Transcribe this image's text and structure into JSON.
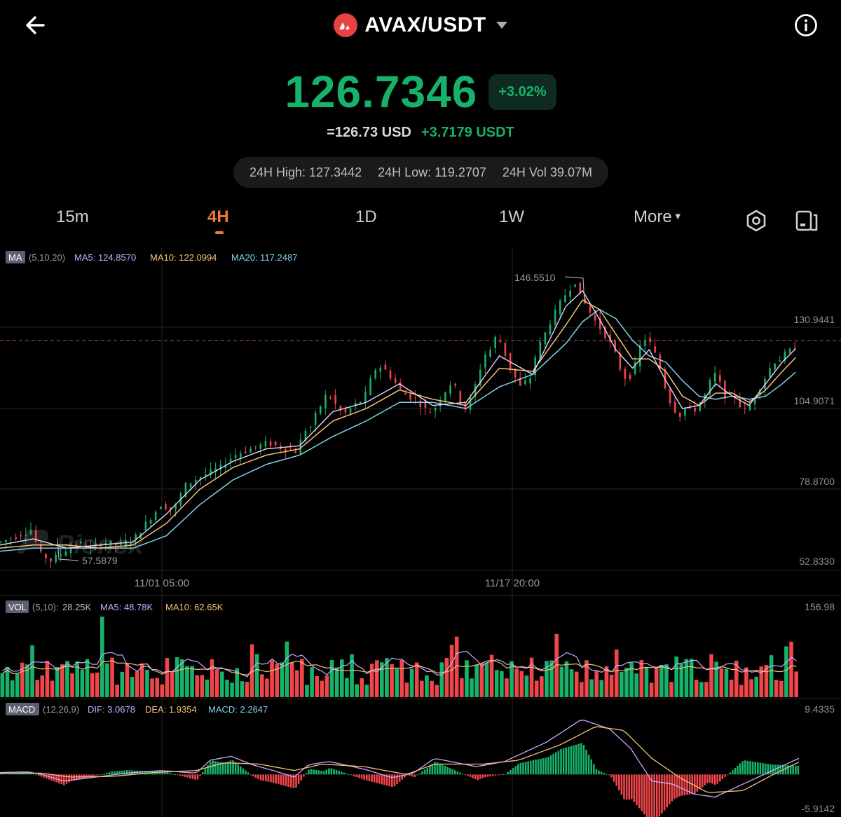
{
  "header": {
    "pair": "AVAX/USDT",
    "back_icon": "arrow-left-icon",
    "info_icon": "info-icon",
    "logo_icon": "avax-logo-icon"
  },
  "ticker": {
    "price": "126.7346",
    "change_pct": "+3.02%",
    "usd_value": "=126.73 USD",
    "change_abs": "+3.7179 USDT",
    "high_24h": "24H High: 127.3442",
    "low_24h": "24H Low: 119.2707",
    "vol_24h": "24H Vol 39.07M"
  },
  "tabs": [
    "15m",
    "4H",
    "1D",
    "1W",
    "More"
  ],
  "active_tab": "4H",
  "colors": {
    "up": "#17b26a",
    "down": "#f0454a",
    "ma5": "#c9a8ff",
    "ma10": "#f4c27b",
    "ma20": "#7fd3ea",
    "accent": "#f07b2e"
  },
  "chart_data": [
    {
      "type": "candlestick",
      "indicator": {
        "tag": "MA",
        "params": "(5,10,20)",
        "ma5": "MA5: 124.8570",
        "ma10": "MA10: 122.0994",
        "ma20": "MA20: 117.2487"
      },
      "y_ticks": [
        "130.9441",
        "104.9071",
        "78.8700",
        "52.8330"
      ],
      "x_ticks": [
        "11/01 05:00",
        "11/17 20:00"
      ],
      "ylim": [
        52.833,
        156.98
      ],
      "high_label": "146.5510",
      "low_label": "57.5879",
      "last_price": 126.7346,
      "watermark": "Pionex",
      "close_path": [
        [
          0,
          62
        ],
        [
          10,
          64
        ],
        [
          18,
          66
        ],
        [
          24,
          58
        ],
        [
          30,
          56
        ],
        [
          38,
          59
        ],
        [
          46,
          62
        ],
        [
          54,
          60
        ],
        [
          62,
          62
        ],
        [
          70,
          61
        ],
        [
          80,
          63
        ],
        [
          90,
          70
        ],
        [
          96,
          74
        ],
        [
          104,
          72
        ],
        [
          110,
          80
        ],
        [
          116,
          82
        ],
        [
          124,
          84
        ],
        [
          132,
          86
        ],
        [
          140,
          90
        ],
        [
          150,
          92
        ],
        [
          160,
          94
        ],
        [
          170,
          92
        ],
        [
          178,
          91
        ],
        [
          182,
          98
        ],
        [
          186,
          99
        ],
        [
          190,
          104
        ],
        [
          196,
          110
        ],
        [
          200,
          107
        ],
        [
          206,
          103
        ],
        [
          212,
          106
        ],
        [
          218,
          108
        ],
        [
          222,
          114
        ],
        [
          226,
          119
        ],
        [
          230,
          118
        ],
        [
          236,
          114
        ],
        [
          240,
          111
        ],
        [
          244,
          109
        ],
        [
          250,
          108
        ],
        [
          254,
          105
        ],
        [
          258,
          104
        ],
        [
          262,
          106
        ],
        [
          266,
          110
        ],
        [
          270,
          113
        ],
        [
          274,
          111
        ],
        [
          278,
          104
        ],
        [
          282,
          108
        ],
        [
          286,
          114
        ],
        [
          290,
          122
        ],
        [
          294,
          124
        ],
        [
          298,
          129
        ],
        [
          302,
          124
        ],
        [
          306,
          118
        ],
        [
          312,
          112
        ],
        [
          318,
          115
        ],
        [
          322,
          124
        ],
        [
          326,
          128
        ],
        [
          330,
          133
        ],
        [
          334,
          137
        ],
        [
          338,
          141
        ],
        [
          342,
          144
        ],
        [
          345,
          146
        ],
        [
          348,
          141
        ],
        [
          352,
          138
        ],
        [
          356,
          134
        ],
        [
          360,
          131
        ],
        [
          364,
          128
        ],
        [
          368,
          124
        ],
        [
          372,
          118
        ],
        [
          376,
          114
        ],
        [
          380,
          117
        ],
        [
          384,
          125
        ],
        [
          388,
          128
        ],
        [
          392,
          124
        ],
        [
          396,
          118
        ],
        [
          400,
          110
        ],
        [
          404,
          105
        ],
        [
          408,
          103
        ],
        [
          412,
          106
        ],
        [
          416,
          104
        ],
        [
          420,
          107
        ],
        [
          424,
          110
        ],
        [
          428,
          117
        ],
        [
          432,
          113
        ],
        [
          436,
          108
        ],
        [
          440,
          110
        ],
        [
          444,
          106
        ],
        [
          448,
          104
        ],
        [
          452,
          108
        ],
        [
          456,
          112
        ],
        [
          460,
          116
        ],
        [
          464,
          120
        ],
        [
          468,
          121
        ],
        [
          472,
          123
        ],
        [
          476,
          124
        ],
        [
          479,
          126.7
        ]
      ],
      "ma5_path": [
        [
          0,
          61
        ],
        [
          20,
          63
        ],
        [
          40,
          60
        ],
        [
          60,
          61
        ],
        [
          80,
          62
        ],
        [
          100,
          71
        ],
        [
          120,
          82
        ],
        [
          140,
          88
        ],
        [
          160,
          92
        ],
        [
          180,
          93
        ],
        [
          200,
          104
        ],
        [
          220,
          107
        ],
        [
          240,
          113
        ],
        [
          260,
          106
        ],
        [
          280,
          107
        ],
        [
          300,
          122
        ],
        [
          320,
          116
        ],
        [
          340,
          138
        ],
        [
          350,
          143
        ],
        [
          360,
          134
        ],
        [
          370,
          124
        ],
        [
          380,
          118
        ],
        [
          390,
          124
        ],
        [
          400,
          114
        ],
        [
          410,
          105
        ],
        [
          420,
          106
        ],
        [
          430,
          113
        ],
        [
          440,
          109
        ],
        [
          450,
          106
        ],
        [
          460,
          113
        ],
        [
          470,
          120
        ],
        [
          479,
          124.8
        ]
      ],
      "ma10_path": [
        [
          0,
          60
        ],
        [
          20,
          61
        ],
        [
          40,
          61
        ],
        [
          60,
          60
        ],
        [
          80,
          61
        ],
        [
          100,
          68
        ],
        [
          120,
          79
        ],
        [
          140,
          86
        ],
        [
          160,
          90
        ],
        [
          180,
          92
        ],
        [
          200,
          101
        ],
        [
          220,
          105
        ],
        [
          240,
          111
        ],
        [
          260,
          108
        ],
        [
          280,
          106
        ],
        [
          300,
          118
        ],
        [
          320,
          117
        ],
        [
          340,
          132
        ],
        [
          350,
          140
        ],
        [
          360,
          137
        ],
        [
          370,
          129
        ],
        [
          380,
          121
        ],
        [
          390,
          121
        ],
        [
          400,
          117
        ],
        [
          410,
          109
        ],
        [
          420,
          106
        ],
        [
          430,
          110
        ],
        [
          440,
          110
        ],
        [
          450,
          107
        ],
        [
          460,
          111
        ],
        [
          470,
          117
        ],
        [
          479,
          122
        ]
      ],
      "ma20_path": [
        [
          0,
          59
        ],
        [
          20,
          60
        ],
        [
          40,
          60
        ],
        [
          60,
          60
        ],
        [
          80,
          60
        ],
        [
          100,
          64
        ],
        [
          120,
          74
        ],
        [
          140,
          82
        ],
        [
          160,
          87
        ],
        [
          180,
          90
        ],
        [
          200,
          96
        ],
        [
          220,
          101
        ],
        [
          240,
          107
        ],
        [
          260,
          107
        ],
        [
          280,
          105
        ],
        [
          300,
          112
        ],
        [
          320,
          116
        ],
        [
          340,
          126
        ],
        [
          350,
          133
        ],
        [
          360,
          137
        ],
        [
          370,
          134
        ],
        [
          380,
          127
        ],
        [
          390,
          122
        ],
        [
          400,
          120
        ],
        [
          410,
          114
        ],
        [
          420,
          109
        ],
        [
          430,
          108
        ],
        [
          440,
          109
        ],
        [
          450,
          108
        ],
        [
          460,
          109
        ],
        [
          470,
          113
        ],
        [
          479,
          117.2
        ]
      ]
    },
    {
      "type": "bar",
      "indicator": {
        "tag": "VOL",
        "params": "(5,10):",
        "vol": "28.25K",
        "ma5": "MA5: 48.78K",
        "ma10": "MA10: 62.65K"
      },
      "y_max_label": "156.98",
      "bar_count": 160
    },
    {
      "type": "bar",
      "indicator": {
        "tag": "MACD",
        "params": "(12,26,9)",
        "dif": "DIF: 3.0678",
        "dea": "DEA: 1.9354",
        "macd": "MACD: 2.2647"
      },
      "y_max_label": "9.4335",
      "y_min_label": "-5.9142",
      "ylim": [
        -5.9142,
        9.4335
      ]
    }
  ]
}
